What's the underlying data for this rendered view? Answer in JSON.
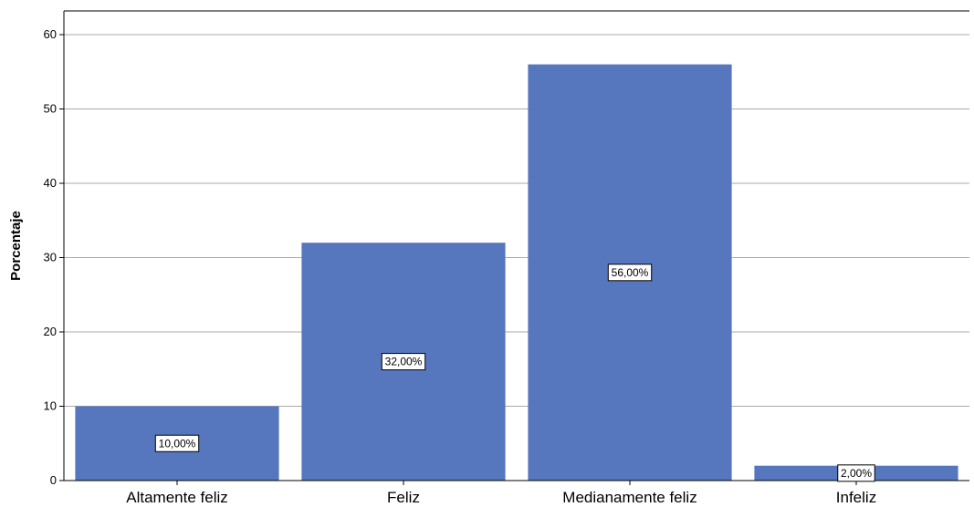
{
  "chart_data": {
    "type": "bar",
    "categories": [
      "Altamente feliz",
      "Feliz",
      "Medianamente feliz",
      "Infeliz"
    ],
    "values": [
      10,
      32,
      56,
      2
    ],
    "data_labels": [
      "10,00%",
      "32,00%",
      "56,00%",
      "2,00%"
    ],
    "ylabel": "Porcentaje",
    "xlabel": "",
    "ylim": [
      0,
      60
    ],
    "yticks": [
      0,
      10,
      20,
      30,
      40,
      50,
      60
    ],
    "grid": true,
    "bar_color": "#5677be",
    "legend": "none"
  }
}
